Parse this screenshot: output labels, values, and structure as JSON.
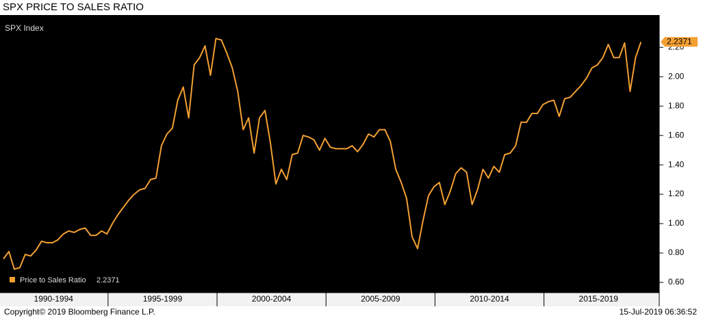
{
  "chart_data": {
    "type": "line",
    "title": "SPX PRICE TO SALES RATIO",
    "subtitle": "SPX Index",
    "periods": [
      "1990-1994",
      "1995-1999",
      "2000-2004",
      "2005-2009",
      "2010-2014",
      "2015-2019"
    ],
    "series": [
      {
        "name": "Price to Sales Ratio",
        "color": "#f4a033",
        "values": [
          0.76,
          0.81,
          0.69,
          0.7,
          0.79,
          0.78,
          0.82,
          0.88,
          0.87,
          0.87,
          0.89,
          0.93,
          0.95,
          0.94,
          0.96,
          0.97,
          0.92,
          0.92,
          0.95,
          0.93,
          1.0,
          1.06,
          1.11,
          1.16,
          1.2,
          1.23,
          1.24,
          1.3,
          1.31,
          1.53,
          1.61,
          1.65,
          1.84,
          1.93,
          1.72,
          2.08,
          2.13,
          2.21,
          2.01,
          2.26,
          2.25,
          2.16,
          2.06,
          1.9,
          1.64,
          1.72,
          1.48,
          1.72,
          1.77,
          1.55,
          1.27,
          1.37,
          1.3,
          1.47,
          1.48,
          1.6,
          1.59,
          1.57,
          1.5,
          1.58,
          1.52,
          1.51,
          1.51,
          1.51,
          1.53,
          1.49,
          1.54,
          1.61,
          1.59,
          1.64,
          1.64,
          1.56,
          1.37,
          1.28,
          1.17,
          0.91,
          0.83,
          1.02,
          1.19,
          1.25,
          1.28,
          1.13,
          1.22,
          1.34,
          1.38,
          1.35,
          1.13,
          1.23,
          1.37,
          1.31,
          1.39,
          1.35,
          1.47,
          1.48,
          1.53,
          1.69,
          1.69,
          1.75,
          1.75,
          1.81,
          1.83,
          1.84,
          1.73,
          1.85,
          1.86,
          1.9,
          1.94,
          1.99,
          2.06,
          2.08,
          2.13,
          2.22,
          2.13,
          2.13,
          2.23,
          1.9,
          2.13,
          2.2371
        ]
      }
    ],
    "ylim": [
      0.53,
      2.42
    ],
    "yticks": [
      {
        "value": 0.6,
        "label": "0.60"
      },
      {
        "value": 0.8,
        "label": "0.80"
      },
      {
        "value": 1.0,
        "label": "1.00"
      },
      {
        "value": 1.2,
        "label": "1.20"
      },
      {
        "value": 1.4,
        "label": "1.40"
      },
      {
        "value": 1.6,
        "label": "1.60"
      },
      {
        "value": 1.8,
        "label": "1.80"
      },
      {
        "value": 2.0,
        "label": "2.00"
      },
      {
        "value": 2.2,
        "label": "2.20"
      }
    ],
    "copyright": "Copyright© 2019 Bloomberg Finance L.P.",
    "timestamp": "15-Jul-2019 06:36:52"
  }
}
